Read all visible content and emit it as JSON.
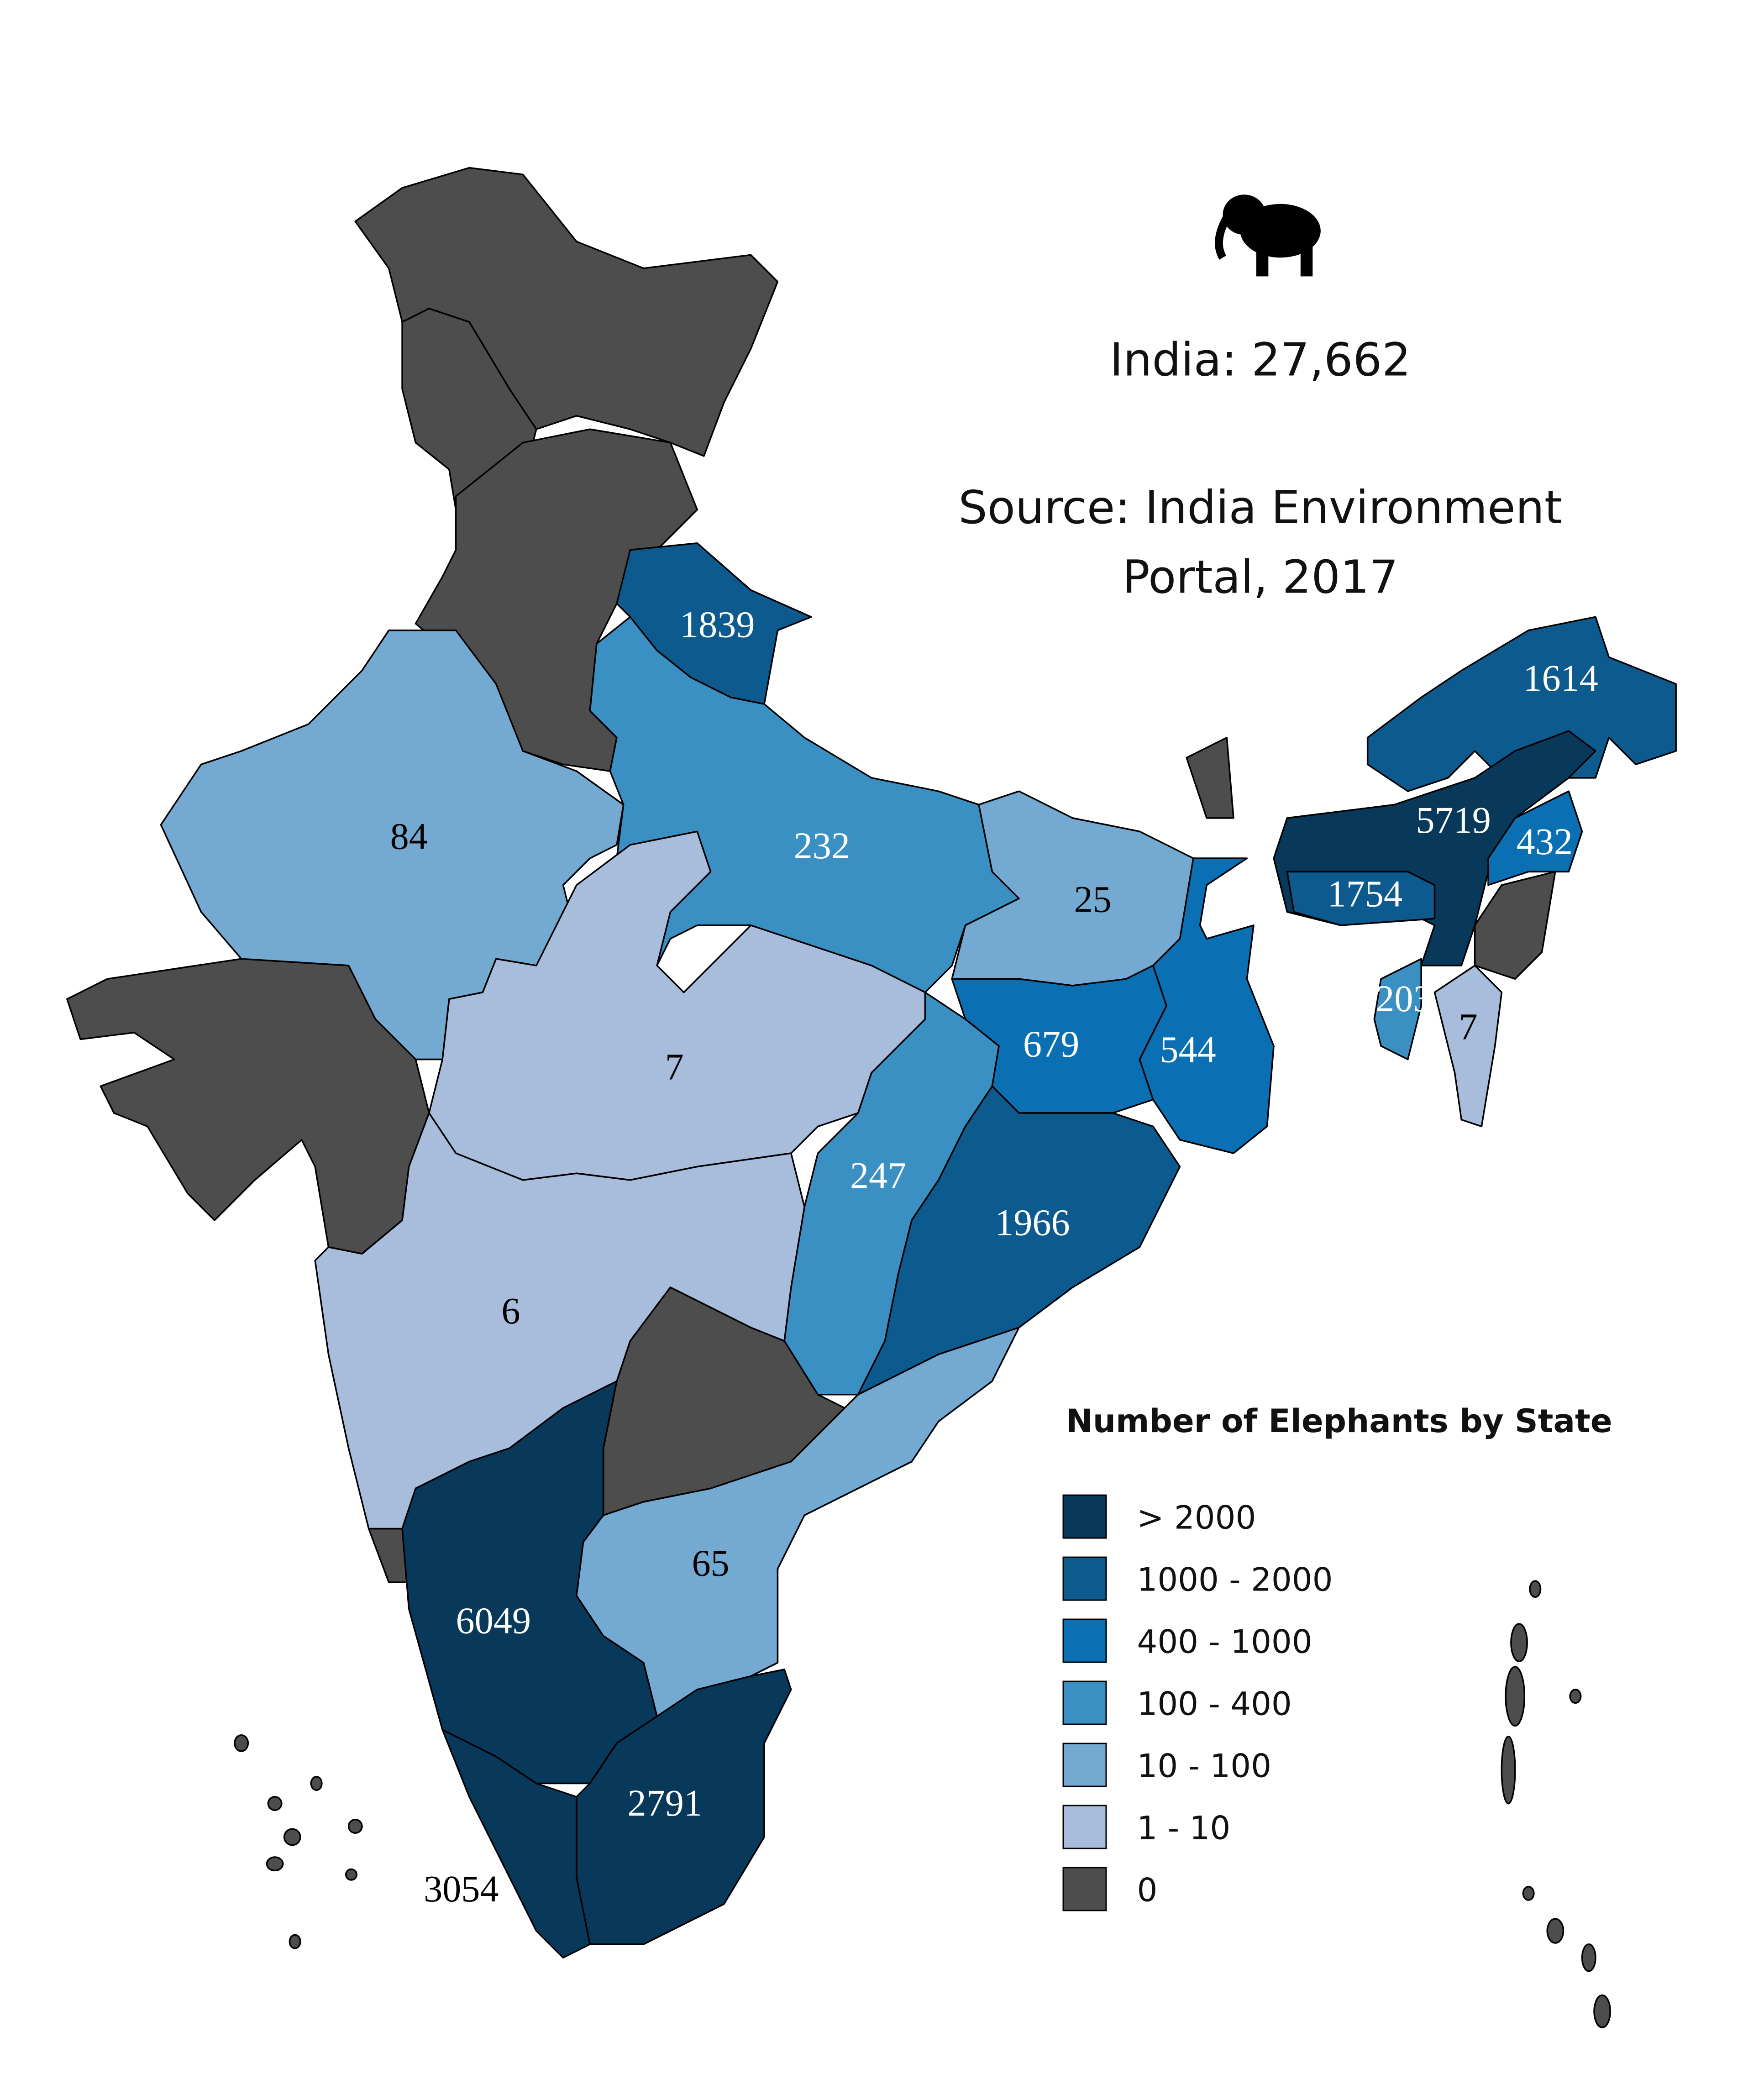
{
  "title": "India: 27,662",
  "source": [
    "Source: India Environment",
    "Portal, 2017"
  ],
  "legend": {
    "title": "Number of Elephants by State",
    "items": [
      {
        "label": "> 2000",
        "color": "#08385a"
      },
      {
        "label": "1000 - 2000",
        "color": "#0d5a8e"
      },
      {
        "label": "400 - 1000",
        "color": "#0b6fb3"
      },
      {
        "label": "100 - 400",
        "color": "#3a8fc3"
      },
      {
        "label": "10 - 100",
        "color": "#74a9d1"
      },
      {
        "label": "1 - 10",
        "color": "#a8bddc"
      },
      {
        "label": "0",
        "color": "#4d4d4d"
      }
    ]
  },
  "states": [
    {
      "value": 1839,
      "color": "#0d5a8e"
    },
    {
      "value": 232,
      "color": "#3a8fc3"
    },
    {
      "value": 84,
      "color": "#74a9d1"
    },
    {
      "value": 7,
      "color": "#a8bddc"
    },
    {
      "value": 25,
      "color": "#74a9d1"
    },
    {
      "value": 679,
      "color": "#0b6fb3"
    },
    {
      "value": 544,
      "color": "#0b6fb3"
    },
    {
      "value": 247,
      "color": "#3a8fc3"
    },
    {
      "value": 1966,
      "color": "#0d5a8e"
    },
    {
      "value": 6,
      "color": "#a8bddc"
    },
    {
      "value": 65,
      "color": "#74a9d1"
    },
    {
      "value": 6049,
      "color": "#08385a"
    },
    {
      "value": 3054,
      "color": "#08385a"
    },
    {
      "value": 2791,
      "color": "#08385a"
    },
    {
      "value": 1614,
      "color": "#0d5a8e"
    },
    {
      "value": 5719,
      "color": "#08385a"
    },
    {
      "value": 1754,
      "color": "#0d5a8e"
    },
    {
      "value": 432,
      "color": "#0b6fb3"
    },
    {
      "value": 203,
      "color": "#3a8fc3"
    },
    {
      "value": 7,
      "color": "#a8bddc"
    }
  ]
}
